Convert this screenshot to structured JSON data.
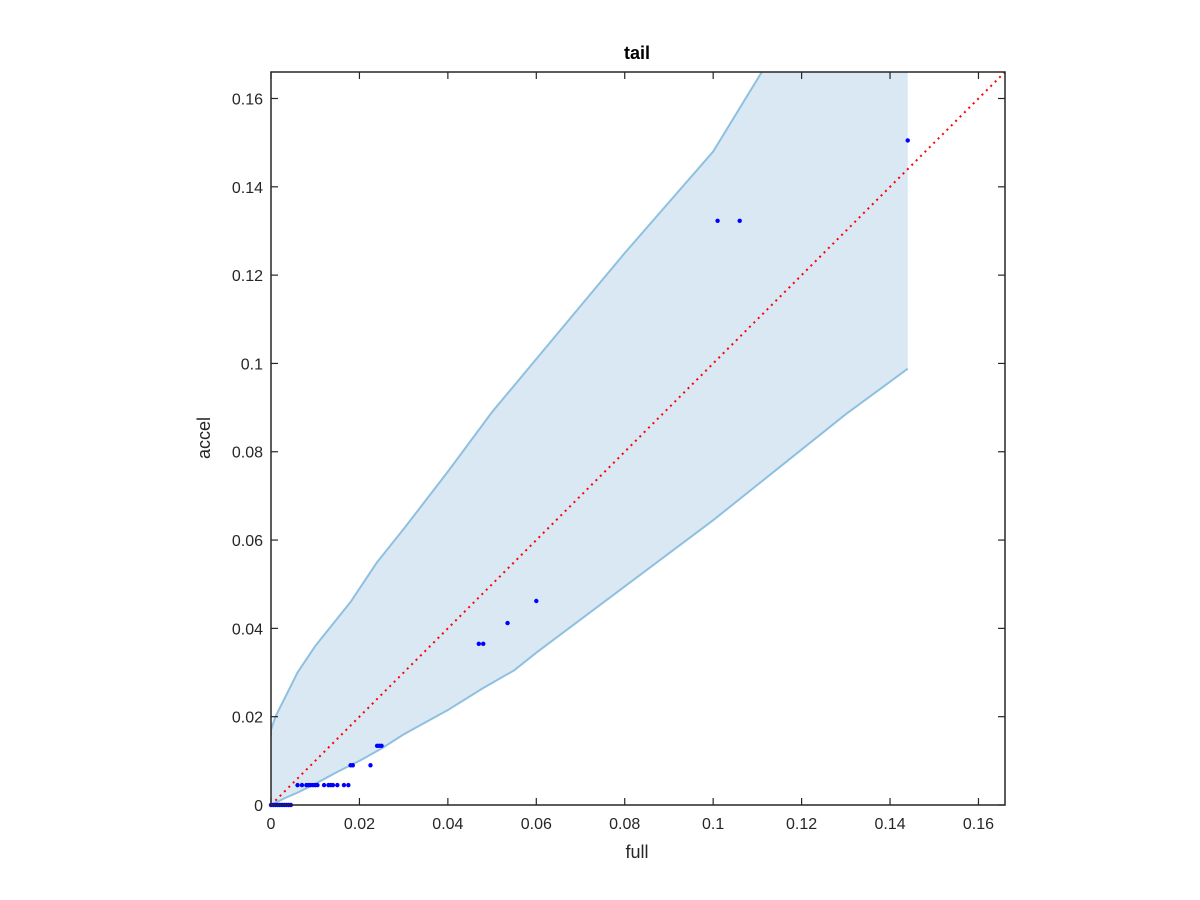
{
  "chart_data": {
    "type": "scatter",
    "title": "tail",
    "xlabel": "full",
    "ylabel": "accel",
    "xlim": [
      0,
      0.166
    ],
    "ylim": [
      0,
      0.166
    ],
    "grid": false,
    "xticks": [
      "0",
      "0.02",
      "0.04",
      "0.06",
      "0.08",
      "0.1",
      "0.12",
      "0.14",
      "0.16"
    ],
    "yticks": [
      "0",
      "0.02",
      "0.04",
      "0.06",
      "0.08",
      "0.1",
      "0.12",
      "0.14",
      "0.16"
    ],
    "points": {
      "x": [
        0,
        0.0005,
        0.001,
        0.0015,
        0.002,
        0.0025,
        0.003,
        0.0035,
        0.004,
        0.0045,
        0.006,
        0.007,
        0.008,
        0.0085,
        0.009,
        0.0095,
        0.01,
        0.0105,
        0.012,
        0.013,
        0.0135,
        0.014,
        0.015,
        0.0165,
        0.0175,
        0.018,
        0.0185,
        0.0225,
        0.024,
        0.0245,
        0.025,
        0.047,
        0.048,
        0.0535,
        0.06,
        0.101,
        0.106,
        0.144
      ],
      "y": [
        0,
        0,
        0,
        0,
        0,
        0,
        0,
        0,
        0,
        0,
        0.0045,
        0.0045,
        0.0045,
        0.0045,
        0.0045,
        0.0045,
        0.0045,
        0.0045,
        0.0045,
        0.0045,
        0.0045,
        0.0045,
        0.0045,
        0.0045,
        0.0045,
        0.009,
        0.009,
        0.009,
        0.0134,
        0.0134,
        0.0134,
        0.0365,
        0.0365,
        0.0412,
        0.0462,
        0.1323,
        0.1323,
        0.1505
      ],
      "color": "#0000ff"
    },
    "reference_line": {
      "style": "dotted",
      "color": "#ff0000",
      "x": [
        0,
        0.166
      ],
      "y": [
        0,
        0.166
      ]
    },
    "band": {
      "fill": "#dae8f4",
      "edge": "#8ec0e0",
      "upper": {
        "x": [
          0,
          0,
          0.001,
          0.003,
          0.006,
          0.01,
          0.014,
          0.018,
          0.024,
          0.03,
          0.04,
          0.05,
          0.06,
          0.07,
          0.08,
          0.09,
          0.1,
          0.111
        ],
        "y": [
          0.0155,
          0.017,
          0.02,
          0.024,
          0.03,
          0.036,
          0.041,
          0.046,
          0.055,
          0.0625,
          0.0755,
          0.089,
          0.101,
          0.113,
          0.125,
          0.1365,
          0.148,
          0.166
        ]
      },
      "top_edge": {
        "x": [
          0.111,
          0.144
        ],
        "y": [
          0.166,
          0.166
        ]
      },
      "right_edge": {
        "x": [
          0.144,
          0.144
        ],
        "y": [
          0.166,
          0.0988
        ]
      },
      "lower": {
        "x": [
          0,
          0.003,
          0.006,
          0.01,
          0.015,
          0.02,
          0.025,
          0.03,
          0.04,
          0.048,
          0.055,
          0.06,
          0.07,
          0.08,
          0.09,
          0.1,
          0.11,
          0.12,
          0.13,
          0.144
        ],
        "y": [
          0,
          0.0015,
          0.0028,
          0.0048,
          0.0075,
          0.01,
          0.0128,
          0.016,
          0.0215,
          0.0265,
          0.0305,
          0.0345,
          0.042,
          0.0495,
          0.057,
          0.0645,
          0.0725,
          0.0805,
          0.0885,
          0.0988
        ]
      }
    }
  }
}
